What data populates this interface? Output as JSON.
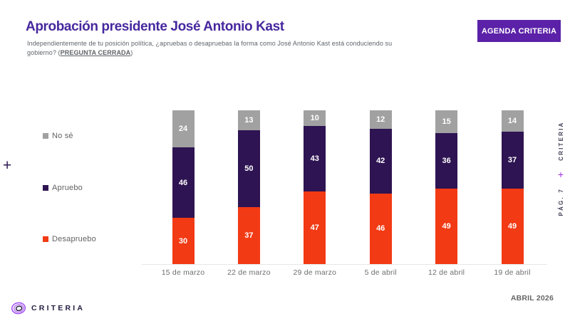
{
  "header": {
    "title": "Aprobación presidente José Antonio Kast",
    "question_prefix": "Independientemente de tu posición política, ¿apruebas o desapruebas la forma como José Antonio Kast está conduciendo su gobierno? (",
    "question_emphasis": "PREGUNTA CERRADA",
    "question_suffix": ")",
    "agenda_button_label": "AGENDA CRITERIA"
  },
  "chart_data": {
    "type": "bar",
    "stacked": true,
    "title": "Aprobación presidente José Antonio Kast",
    "categories": [
      "15 de marzo",
      "22 de marzo",
      "29 de marzo",
      "5 de abril",
      "12 de abril",
      "19 de abril"
    ],
    "series": [
      {
        "name": "Desapruebo",
        "color": "#f23a14",
        "values": [
          30,
          37,
          47,
          46,
          49,
          49
        ]
      },
      {
        "name": "Apruebo",
        "color": "#2e1452",
        "values": [
          46,
          50,
          43,
          42,
          36,
          37
        ]
      },
      {
        "name": "No sé",
        "color": "#a1a1a1",
        "values": [
          24,
          13,
          10,
          12,
          15,
          14
        ]
      }
    ],
    "ylim": [
      0,
      100
    ],
    "grid": false,
    "value_labels": true,
    "legend_position": "left"
  },
  "legend": {
    "items": [
      {
        "label": "No sé",
        "color": "#a1a1a1"
      },
      {
        "label": "Apruebo",
        "color": "#2e1452"
      },
      {
        "label": "Desapruebo",
        "color": "#f23a14"
      }
    ]
  },
  "ornaments": {
    "left_plus": "+",
    "right_plus": "+",
    "page_label": "PÁG. 7",
    "vertical_brand": "CRITERIA"
  },
  "footer": {
    "brand": "CRITERIA",
    "date": "ABRIL 2026"
  },
  "colors": {
    "title": "#47289e",
    "button_bg": "#5b21a8",
    "approve": "#2e1452",
    "disapprove": "#f23a14",
    "dontknow": "#a1a1a1",
    "baseline": "#e7e7e7"
  }
}
